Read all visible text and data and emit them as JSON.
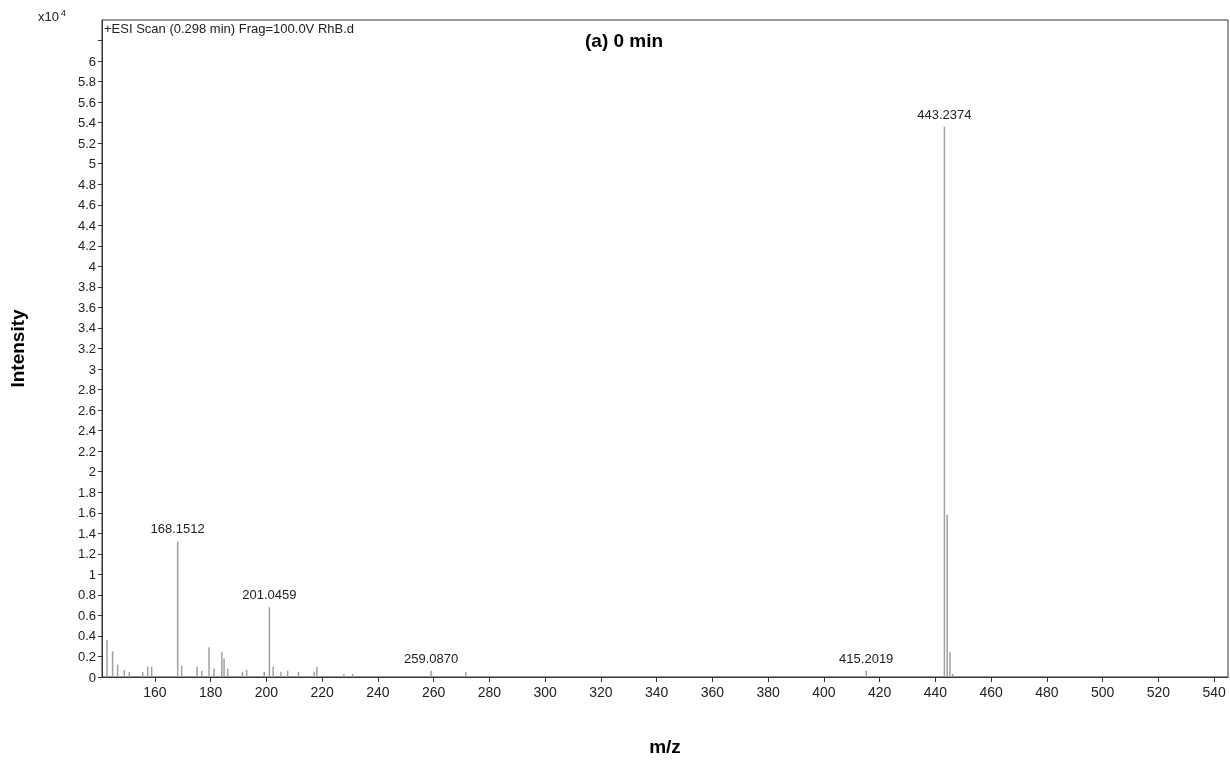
{
  "chart_data": {
    "type": "bar",
    "title": "(a) 0 min",
    "xlabel": "m/z",
    "ylabel": "Intensity",
    "annotations": [
      "+ESI Scan (0.298 min) Frag=100.0V RhB.d",
      "x10$^{4}$",
      {
        "text": "168.1512",
        "x": 168.15,
        "y": 1.32
      },
      {
        "text": "201.0459",
        "x": 201.05,
        "y": 0.68
      },
      {
        "text": "259.0870",
        "x": 259.09,
        "y": 0.06
      },
      {
        "text": "415.2019",
        "x": 415.2,
        "y": 0.06
      },
      {
        "text": "443.2374",
        "x": 443.24,
        "y": 5.36
      }
    ],
    "x": [
      142.8,
      144.8,
      146.6,
      149.0,
      150.8,
      155.6,
      157.4,
      158.8,
      168.15,
      169.6,
      175.1,
      176.8,
      179.4,
      181.2,
      184.0,
      184.8,
      186.1,
      191.4,
      192.9,
      199.2,
      201.05,
      202.4,
      205.2,
      207.6,
      211.5,
      217.1,
      218.1,
      227.8,
      230.9,
      259.09,
      271.5,
      415.2,
      443.24,
      444.24,
      445.24,
      446.2
    ],
    "values": [
      0.36,
      0.25,
      0.12,
      0.07,
      0.05,
      0.05,
      0.1,
      0.1,
      1.32,
      0.11,
      0.1,
      0.06,
      0.29,
      0.08,
      0.24,
      0.18,
      0.08,
      0.05,
      0.07,
      0.05,
      0.68,
      0.1,
      0.05,
      0.06,
      0.05,
      0.05,
      0.1,
      0.03,
      0.03,
      0.06,
      0.05,
      0.06,
      5.36,
      1.58,
      0.24,
      0.03
    ],
    "color": "#a0a0a0",
    "xlim": [
      141,
      545
    ],
    "xticks": [
      160,
      180,
      200,
      220,
      240,
      260,
      280,
      300,
      320,
      340,
      360,
      380,
      400,
      420,
      440,
      460,
      480,
      500,
      520,
      540
    ],
    "ylim": [
      0,
      6.4
    ],
    "yticks": [
      0,
      0.2,
      0.4,
      0.6,
      0.8,
      1,
      1.2,
      1.4,
      1.6,
      1.8,
      2,
      2.2,
      2.4,
      2.6,
      2.8,
      3,
      3.2,
      3.4,
      3.6,
      3.8,
      4,
      4.2,
      4.4,
      4.6,
      4.8,
      5,
      5.2,
      5.4,
      5.6,
      5.8,
      6,
      {
        "value": 6.2,
        "label": null
      }
    ],
    "grid": false
  }
}
